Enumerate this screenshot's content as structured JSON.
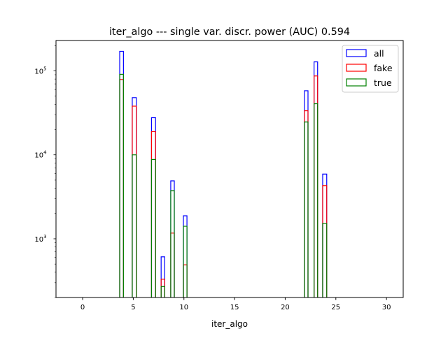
{
  "chart_data": {
    "type": "bar",
    "histtype": "step",
    "title": "iter_algo --- single var. discr. power (AUC) 0.594",
    "xlabel": "iter_algo",
    "ylabel": "",
    "xlim": [
      -2.63,
      31.65
    ],
    "ylim": [
      200,
      230000
    ],
    "yscale": "log",
    "xticks": [
      0,
      5,
      10,
      15,
      20,
      25,
      30
    ],
    "yticks": [
      {
        "value": 1000,
        "base": "10",
        "exp": "3"
      },
      {
        "value": 10000,
        "base": "10",
        "exp": "4"
      },
      {
        "value": 100000,
        "base": "10",
        "exp": "5"
      }
    ],
    "legend_position": "top-right",
    "bins": [
      [
        3.66,
        4.03
      ],
      [
        4.9,
        5.3
      ],
      [
        6.8,
        7.2
      ],
      [
        7.75,
        8.1
      ],
      [
        8.7,
        9.05
      ],
      [
        9.95,
        10.3
      ],
      [
        21.9,
        22.25
      ],
      [
        22.85,
        23.2
      ],
      [
        23.7,
        24.1
      ]
    ],
    "series": [
      {
        "name": "all",
        "color": "#0000ff",
        "values": [
          171000,
          48000,
          27700,
          610,
          4900,
          1880,
          58000,
          128000,
          5900
        ]
      },
      {
        "name": "fake",
        "color": "#ff0000",
        "values": [
          79000,
          38000,
          18900,
          330,
          1170,
          490,
          33500,
          87000,
          4300
        ]
      },
      {
        "name": "true",
        "color": "#008000",
        "values": [
          91000,
          10000,
          8800,
          270,
          3750,
          1410,
          24600,
          40600,
          1520
        ]
      }
    ]
  }
}
